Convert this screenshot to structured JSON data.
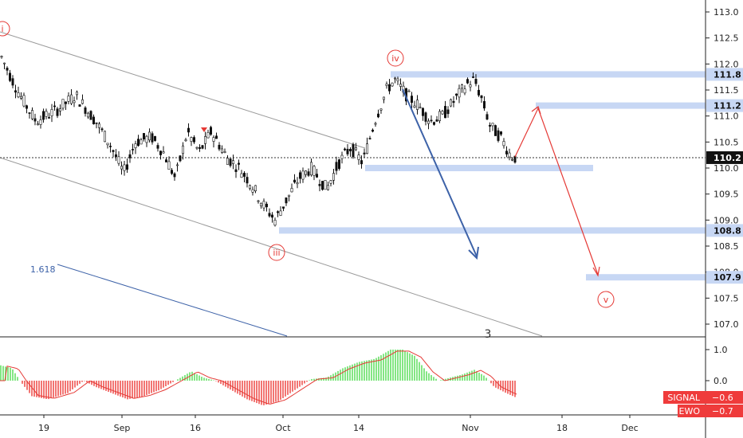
{
  "chart_data": {
    "type": "candlestick",
    "price_axis": {
      "ticks": [
        "113.0",
        "112.5",
        "112.0",
        "111.5",
        "111.0",
        "110.5",
        "110.0",
        "109.5",
        "109.0",
        "108.5",
        "108.0",
        "107.5",
        "107.0"
      ],
      "range": [
        106.8,
        113.25
      ]
    },
    "time_axis": {
      "ticks": [
        "19",
        "Sep",
        "16",
        "Oct",
        "14",
        "Nov",
        "18",
        "Dec"
      ]
    },
    "price_labels": [
      {
        "text": "111.8",
        "value": 111.8,
        "style": "zone"
      },
      {
        "text": "111.2",
        "value": 111.2,
        "style": "zone"
      },
      {
        "text": "110.2",
        "value": 110.2,
        "style": "current"
      },
      {
        "text": "108.8",
        "value": 108.8,
        "style": "zone"
      },
      {
        "text": "107.9",
        "value": 107.9,
        "style": "zone"
      }
    ],
    "wave_labels": [
      "i",
      "iii",
      "iv",
      "v",
      "3"
    ],
    "fib_label": "1.618",
    "indicator": {
      "name": "EWO",
      "axis_ticks": [
        "1.0",
        "0.0"
      ],
      "range": [
        -1.0,
        1.35
      ],
      "signal_label": "SIGNAL",
      "signal_value": "−0.6",
      "ewo_label": "EWO",
      "ewo_value": "−0.7"
    },
    "colors": {
      "up": "#26a69a",
      "down": "#ef5350",
      "ewo_positive": "#66e066",
      "ewo_negative": "#ef5350",
      "signal_line": "#e53935",
      "zone": "#c7d7f4",
      "channel": "#9a9a9a",
      "blue_arrow": "#3d62a8",
      "red_arrow": "#e53935"
    }
  }
}
